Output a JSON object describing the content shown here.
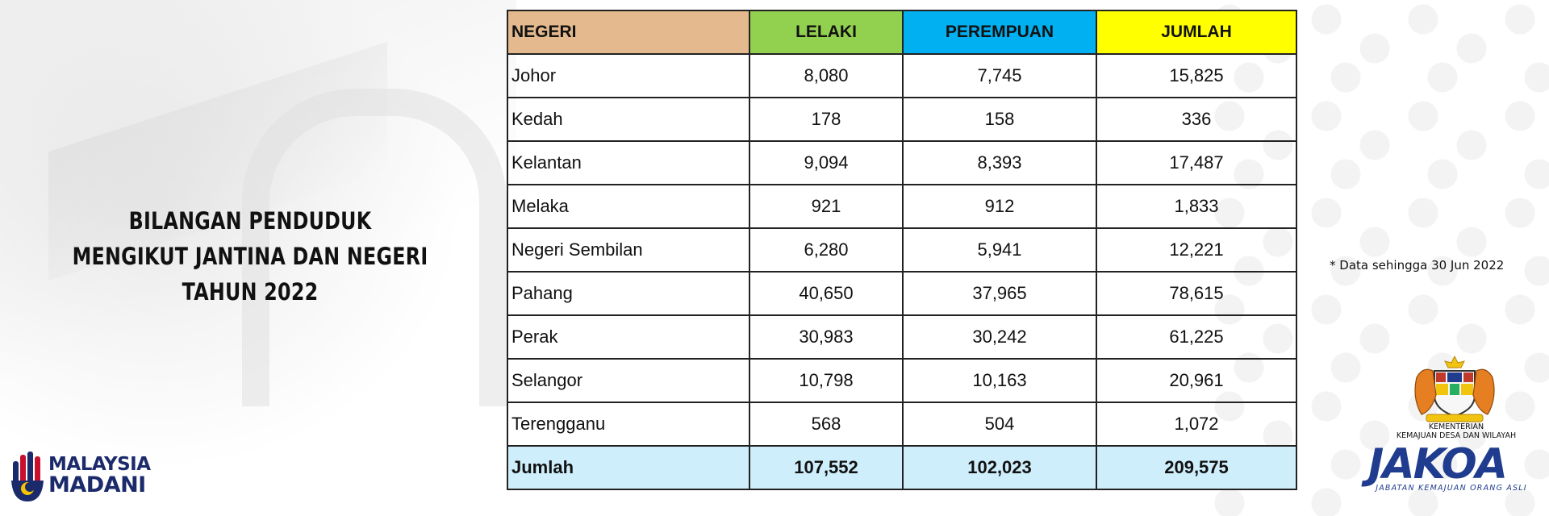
{
  "title": {
    "line1": "BILANGAN PENDUDUK",
    "line2": "MENGIKUT JANTINA DAN NEGERI TAHUN 2022"
  },
  "table": {
    "headers": {
      "state": "NEGERI",
      "male": "LELAKI",
      "female": "PEREMPUAN",
      "total": "JUMLAH"
    },
    "header_colors": {
      "state": "#e3b98d",
      "male": "#92d050",
      "female": "#00b0f0",
      "total": "#ffff00"
    },
    "rows": [
      {
        "state": "Johor",
        "male": "8,080",
        "female": "7,745",
        "total": "15,825"
      },
      {
        "state": "Kedah",
        "male": "178",
        "female": "158",
        "total": "336"
      },
      {
        "state": "Kelantan",
        "male": "9,094",
        "female": "8,393",
        "total": "17,487"
      },
      {
        "state": "Melaka",
        "male": "921",
        "female": "912",
        "total": "1,833"
      },
      {
        "state": "Negeri Sembilan",
        "male": "6,280",
        "female": "5,941",
        "total": "12,221"
      },
      {
        "state": "Pahang",
        "male": "40,650",
        "female": "37,965",
        "total": "78,615"
      },
      {
        "state": "Perak",
        "male": "30,983",
        "female": "30,242",
        "total": "61,225"
      },
      {
        "state": "Selangor",
        "male": "10,798",
        "female": "10,163",
        "total": "20,961"
      },
      {
        "state": "Terengganu",
        "male": "568",
        "female": "504",
        "total": "1,072"
      }
    ],
    "total_row": {
      "state": "Jumlah",
      "male": "107,552",
      "female": "102,023",
      "total": "209,575"
    },
    "total_row_color": "#cfeefb"
  },
  "note": "* Data sehingga 30 Jun 2022",
  "logos": {
    "madani": {
      "line1": "MALAYSIA",
      "line2": "MADANI"
    },
    "ministry": {
      "line1": "KEMENTERIAN",
      "line2": "KEMAJUAN DESA DAN WILAYAH"
    },
    "jakoa": {
      "word": "JAKOA",
      "subtitle": "JABATAN KEMAJUAN ORANG ASLI"
    }
  }
}
